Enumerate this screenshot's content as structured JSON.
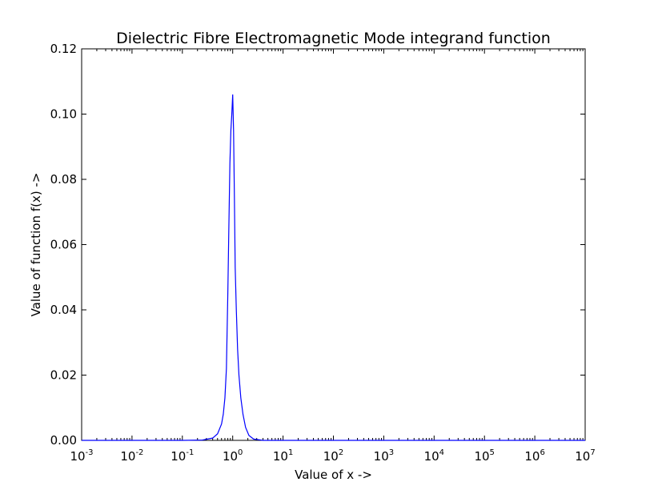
{
  "chart_data": {
    "type": "line",
    "title": "Dielectric Fibre Electromagnetic Mode integrand function",
    "xlabel": "Value of x ->",
    "ylabel": "Value of function f(x) ->",
    "xscale": "log",
    "xlim": [
      0.001,
      10000000
    ],
    "ylim": [
      0.0,
      0.12
    ],
    "x_ticks": [
      {
        "base": "10",
        "exp": "-3",
        "value": 0.001
      },
      {
        "base": "10",
        "exp": "-2",
        "value": 0.01
      },
      {
        "base": "10",
        "exp": "-1",
        "value": 0.1
      },
      {
        "base": "10",
        "exp": "0",
        "value": 1
      },
      {
        "base": "10",
        "exp": "1",
        "value": 10
      },
      {
        "base": "10",
        "exp": "2",
        "value": 100
      },
      {
        "base": "10",
        "exp": "3",
        "value": 1000
      },
      {
        "base": "10",
        "exp": "4",
        "value": 10000
      },
      {
        "base": "10",
        "exp": "5",
        "value": 100000
      },
      {
        "base": "10",
        "exp": "6",
        "value": 1000000
      },
      {
        "base": "10",
        "exp": "7",
        "value": 10000000
      }
    ],
    "y_ticks": [
      {
        "label": "0.00",
        "value": 0.0
      },
      {
        "label": "0.02",
        "value": 0.02
      },
      {
        "label": "0.04",
        "value": 0.04
      },
      {
        "label": "0.06",
        "value": 0.06
      },
      {
        "label": "0.08",
        "value": 0.08
      },
      {
        "label": "0.10",
        "value": 0.1
      },
      {
        "label": "0.12",
        "value": 0.12
      }
    ],
    "grid": false,
    "legend": "none",
    "series": [
      {
        "color": "#0000ff",
        "x": [
          0.001,
          0.01,
          0.1,
          0.25,
          0.4,
          0.5,
          0.6,
          0.65,
          0.7,
          0.75,
          0.8,
          0.84,
          0.88,
          0.92,
          0.96,
          1.0,
          1.04,
          1.08,
          1.12,
          1.18,
          1.25,
          1.33,
          1.45,
          1.6,
          1.8,
          2.1,
          2.6,
          4,
          10,
          100,
          1000,
          10000,
          100000,
          1000000,
          10000000
        ],
        "y": [
          0.0,
          0.0,
          0.0,
          0.0001,
          0.0007,
          0.002,
          0.005,
          0.008,
          0.013,
          0.022,
          0.045,
          0.066,
          0.085,
          0.095,
          0.1,
          0.106,
          0.095,
          0.075,
          0.053,
          0.04,
          0.028,
          0.02,
          0.013,
          0.008,
          0.004,
          0.0015,
          0.0004,
          0.0,
          0.0,
          0.0,
          0.0,
          0.0,
          0.0,
          0.0,
          0.0
        ]
      }
    ]
  }
}
